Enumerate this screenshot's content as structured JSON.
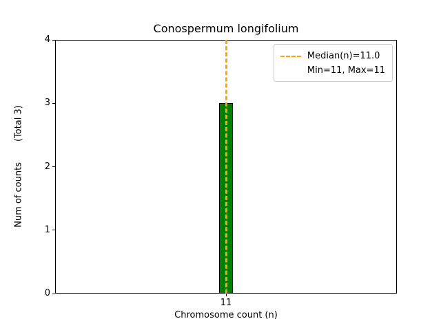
{
  "figure": {
    "background": "#ffffff"
  },
  "chart_data": {
    "type": "bar",
    "title": "Conospermum longifolium",
    "xlabel": "Chromosome count (n)",
    "ylabel_main": "Num of counts",
    "ylabel_total": "(Total 3)",
    "categories": [
      "11"
    ],
    "values": [
      3
    ],
    "ylim": [
      0,
      4
    ],
    "yticks": [
      0,
      1,
      2,
      3,
      4
    ],
    "grid": false,
    "bar_color": "#008000",
    "bar_edge_color": "#000000",
    "median": {
      "value": 11.0,
      "line_color": "#FFA500",
      "line_style": "dashed"
    },
    "legend": {
      "position": "upper right",
      "entries": [
        {
          "label": "Median(n)=11.0",
          "marker": "orange-dashed-line"
        },
        {
          "label": "Min=11, Max=11",
          "marker": "none"
        }
      ]
    }
  }
}
